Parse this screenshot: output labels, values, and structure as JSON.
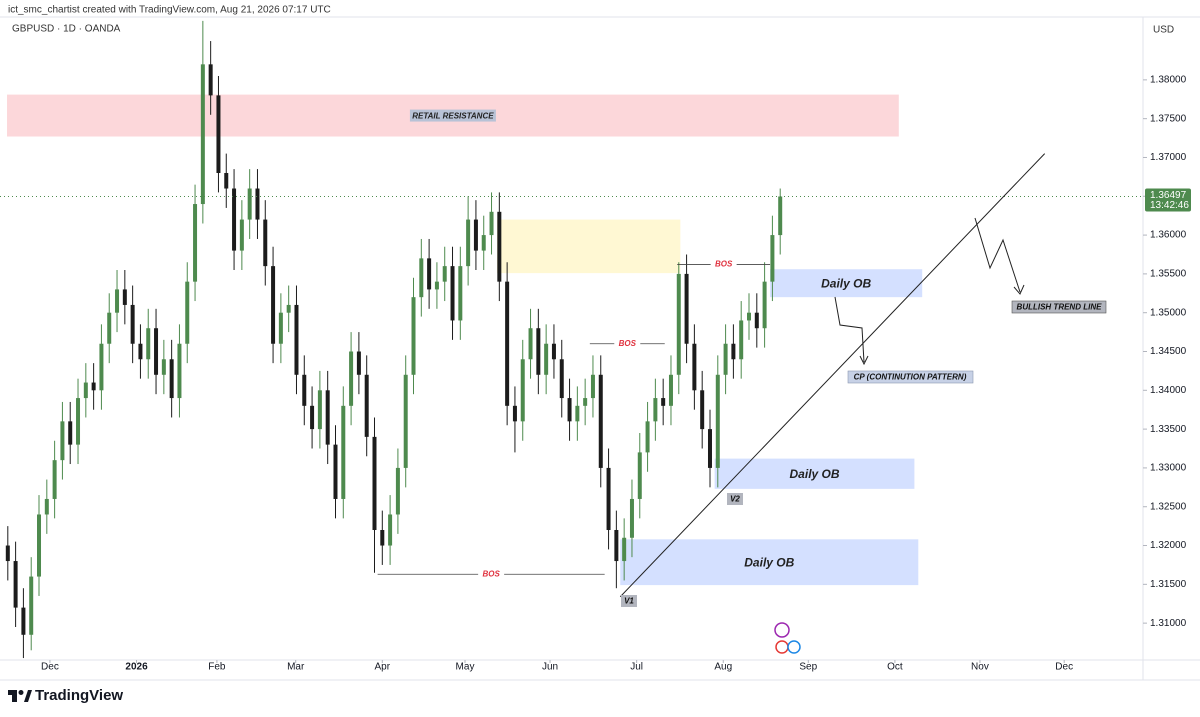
{
  "chart_data": {
    "type": "candlestick",
    "header": "ict_smc_chartist created with TradingView.com, Aug 21, 2026 07:17 UTC",
    "symbol": "GBPUSD · 1D · OANDA",
    "currency": "USD",
    "footer": "TradingView",
    "up_color": "#4e8a4e",
    "down_color": "#1c1c1c",
    "open": [
      1.32,
      1.318,
      1.312,
      1.3085,
      1.316,
      1.324,
      1.326,
      1.331,
      1.336,
      1.333,
      1.339,
      1.341,
      1.34,
      1.346,
      1.35,
      1.353,
      1.351,
      1.346,
      1.344,
      1.348,
      1.342,
      1.344,
      1.339,
      1.346,
      1.354,
      1.364,
      1.382,
      1.378,
      1.368,
      1.366,
      1.358,
      1.362,
      1.366,
      1.362,
      1.356,
      1.346,
      1.35,
      1.351,
      1.342,
      1.338,
      1.335,
      1.34,
      1.333,
      1.326,
      1.338,
      1.345,
      1.342,
      1.334,
      1.322,
      1.32,
      1.324,
      1.33,
      1.342,
      1.352,
      1.357,
      1.353,
      1.354,
      1.356,
      1.349,
      1.356,
      1.362,
      1.358,
      1.36,
      1.363,
      1.354,
      1.338,
      1.336,
      1.344,
      1.348,
      1.342,
      1.346,
      1.344,
      1.339,
      1.336,
      1.338,
      1.339,
      1.342,
      1.33,
      1.322,
      1.318,
      1.321,
      1.326,
      1.332,
      1.336,
      1.339,
      1.338,
      1.342,
      1.355,
      1.346,
      1.34,
      1.335,
      1.33,
      1.342,
      1.346,
      1.344,
      1.349,
      1.35,
      1.348,
      1.354,
      1.36
    ],
    "high": [
      1.3225,
      1.3205,
      1.3145,
      1.3185,
      1.3265,
      1.3285,
      1.3335,
      1.3385,
      1.3385,
      1.3415,
      1.3435,
      1.3435,
      1.3485,
      1.3525,
      1.3555,
      1.3555,
      1.3535,
      1.3485,
      1.3505,
      1.3505,
      1.3465,
      1.3465,
      1.3485,
      1.3565,
      1.3665,
      1.3876,
      1.385,
      1.3805,
      1.3705,
      1.3685,
      1.3645,
      1.3685,
      1.3685,
      1.3645,
      1.3585,
      1.3525,
      1.3535,
      1.3535,
      1.3445,
      1.3405,
      1.3425,
      1.3425,
      1.3355,
      1.3405,
      1.3475,
      1.3475,
      1.3445,
      1.3365,
      1.3245,
      1.3265,
      1.3325,
      1.3445,
      1.3545,
      1.3595,
      1.3595,
      1.3565,
      1.3585,
      1.3585,
      1.3585,
      1.365,
      1.3645,
      1.3625,
      1.3655,
      1.3655,
      1.3565,
      1.3405,
      1.3465,
      1.3505,
      1.3505,
      1.3485,
      1.3485,
      1.3465,
      1.3415,
      1.3405,
      1.3415,
      1.3445,
      1.3445,
      1.3325,
      1.3245,
      1.3235,
      1.3285,
      1.3345,
      1.3385,
      1.3415,
      1.3415,
      1.3445,
      1.3565,
      1.3575,
      1.3485,
      1.3425,
      1.3375,
      1.3445,
      1.3485,
      1.3485,
      1.3515,
      1.3525,
      1.3525,
      1.3565,
      1.3625,
      1.366
    ],
    "low": [
      1.3155,
      1.3095,
      1.3055,
      1.3065,
      1.3135,
      1.3215,
      1.3235,
      1.3285,
      1.3305,
      1.3305,
      1.3365,
      1.3375,
      1.3375,
      1.3435,
      1.3475,
      1.3485,
      1.3435,
      1.3415,
      1.3415,
      1.3395,
      1.3395,
      1.3365,
      1.3365,
      1.3435,
      1.3515,
      1.3615,
      1.3755,
      1.3655,
      1.3635,
      1.3555,
      1.3555,
      1.3595,
      1.3595,
      1.3535,
      1.3435,
      1.3435,
      1.3475,
      1.3395,
      1.3355,
      1.3325,
      1.3325,
      1.3305,
      1.3235,
      1.3235,
      1.3355,
      1.3395,
      1.3315,
      1.3165,
      1.3175,
      1.3175,
      1.3215,
      1.3275,
      1.3395,
      1.3495,
      1.3505,
      1.3505,
      1.3515,
      1.3465,
      1.3465,
      1.3535,
      1.3555,
      1.3555,
      1.3575,
      1.3515,
      1.3355,
      1.332,
      1.3335,
      1.3415,
      1.3395,
      1.3395,
      1.3415,
      1.3365,
      1.3335,
      1.3335,
      1.3355,
      1.3365,
      1.3275,
      1.3195,
      1.3145,
      1.3155,
      1.3185,
      1.3235,
      1.3295,
      1.3335,
      1.3355,
      1.3355,
      1.3395,
      1.3435,
      1.3375,
      1.3325,
      1.3275,
      1.3275,
      1.3395,
      1.3415,
      1.3415,
      1.3465,
      1.3455,
      1.3455,
      1.3515,
      1.3575
    ],
    "close": [
      1.318,
      1.312,
      1.3085,
      1.316,
      1.324,
      1.326,
      1.331,
      1.336,
      1.333,
      1.339,
      1.341,
      1.34,
      1.346,
      1.35,
      1.353,
      1.351,
      1.346,
      1.344,
      1.348,
      1.342,
      1.344,
      1.339,
      1.346,
      1.354,
      1.364,
      1.382,
      1.378,
      1.368,
      1.366,
      1.358,
      1.362,
      1.366,
      1.362,
      1.356,
      1.346,
      1.35,
      1.351,
      1.342,
      1.338,
      1.335,
      1.34,
      1.333,
      1.326,
      1.338,
      1.345,
      1.342,
      1.334,
      1.322,
      1.32,
      1.324,
      1.33,
      1.342,
      1.352,
      1.357,
      1.353,
      1.354,
      1.356,
      1.349,
      1.356,
      1.362,
      1.358,
      1.36,
      1.363,
      1.354,
      1.338,
      1.336,
      1.344,
      1.348,
      1.342,
      1.346,
      1.344,
      1.339,
      1.336,
      1.338,
      1.339,
      1.342,
      1.33,
      1.322,
      1.318,
      1.321,
      1.326,
      1.332,
      1.336,
      1.339,
      1.338,
      1.342,
      1.355,
      1.346,
      1.34,
      1.335,
      1.33,
      1.342,
      1.346,
      1.344,
      1.349,
      1.35,
      1.348,
      1.354,
      1.36,
      1.36497
    ],
    "last_price": 1.36497,
    "countdown": "13:42:46",
    "xlim": [
      -1,
      145.5
    ],
    "xticks": [
      {
        "value": 5.4,
        "label": "Dec"
      },
      {
        "value": 16.5,
        "label": "2026"
      },
      {
        "value": 26.8,
        "label": "Feb"
      },
      {
        "value": 36.9,
        "label": "Mar"
      },
      {
        "value": 48,
        "label": "Apr"
      },
      {
        "value": 58.6,
        "label": "May"
      },
      {
        "value": 69.5,
        "label": "Jun"
      },
      {
        "value": 80.6,
        "label": "Jul"
      },
      {
        "value": 91.7,
        "label": "Aug"
      },
      {
        "value": 102.6,
        "label": "Sep"
      },
      {
        "value": 113.7,
        "label": "Oct"
      },
      {
        "value": 124.6,
        "label": "Nov"
      },
      {
        "value": 135.4,
        "label": "Dec"
      }
    ],
    "ylim": [
      1.30525,
      1.3881
    ],
    "yticks": [
      {
        "value": 1.31,
        "label": "1.31000"
      },
      {
        "value": 1.315,
        "label": "1.31500"
      },
      {
        "value": 1.32,
        "label": "1.32000"
      },
      {
        "value": 1.325,
        "label": "1.32500"
      },
      {
        "value": 1.33,
        "label": "1.33000"
      },
      {
        "value": 1.335,
        "label": "1.33500"
      },
      {
        "value": 1.34,
        "label": "1.34000"
      },
      {
        "value": 1.345,
        "label": "1.34500"
      },
      {
        "value": 1.35,
        "label": "1.35000"
      },
      {
        "value": 1.355,
        "label": "1.35500"
      },
      {
        "value": 1.36,
        "label": "1.36000"
      },
      {
        "value": 1.365,
        "label": "1.36500"
      },
      {
        "value": 1.37,
        "label": "1.37000"
      },
      {
        "value": 1.375,
        "label": "1.37500"
      },
      {
        "value": 1.38,
        "label": "1.38000"
      }
    ],
    "zones": [
      {
        "label": "RETAIL RESISTANCE",
        "color": "rgba(242,54,69,0.2)",
        "x": [
          -0.1,
          114.2
        ],
        "y": [
          1.3727,
          1.3781
        ]
      },
      {
        "color": "rgba(255,235,130,0.35)",
        "x": [
          62.7,
          86.2
        ],
        "y": [
          1.3551,
          1.362
        ]
      },
      {
        "label": "Daily OB",
        "color": "rgba(41,98,255,0.2)",
        "x": [
          97.7,
          117.2
        ],
        "y": [
          1.352,
          1.3556
        ]
      },
      {
        "label": "Daily OB",
        "color": "rgba(41,98,255,0.2)",
        "x": [
          90.6,
          116.2
        ],
        "y": [
          1.3273,
          1.3312
        ]
      },
      {
        "label": "Daily OB",
        "color": "rgba(41,98,255,0.2)",
        "x": [
          78.5,
          116.7
        ],
        "y": [
          1.3149,
          1.3208
        ]
      }
    ],
    "bos": [
      {
        "label": "BOS",
        "y": 1.3163,
        "x": [
          47.4,
          76.5
        ]
      },
      {
        "label": "BOS",
        "y": 1.346,
        "x": [
          74.6,
          84.2
        ]
      },
      {
        "label": "BOS",
        "y": 1.3562,
        "x": [
          85.8,
          97.7
        ]
      }
    ],
    "trend_line": {
      "x": [
        78.5,
        132.9
      ],
      "y": [
        1.3134,
        1.3705
      ]
    },
    "annotations": [
      "V1",
      "V2",
      "CP (CONTINUTION PATTERN)",
      "BULLISH TREND LINE"
    ]
  }
}
